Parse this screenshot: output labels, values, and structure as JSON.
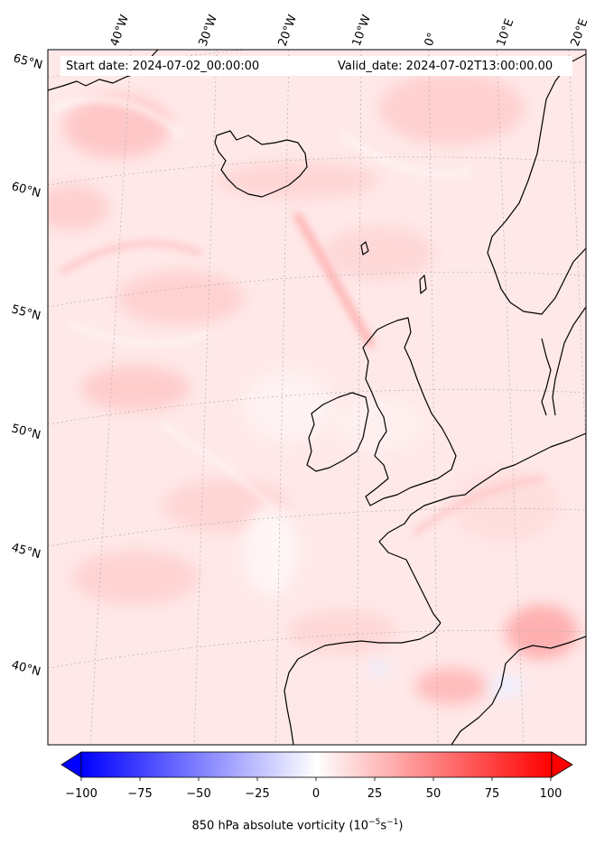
{
  "header": {
    "start_date": "Start date: 2024-07-02_00:00:00",
    "valid_date": "Valid_date: 2024-07-02T13:00:00.00"
  },
  "longitude_labels": [
    "40°W",
    "30°W",
    "20°W",
    "10°W",
    "0°",
    "10°E",
    "20°E"
  ],
  "latitude_labels": [
    "65°N",
    "60°N",
    "55°N",
    "50°N",
    "45°N",
    "40°N"
  ],
  "colorbar": {
    "ticks": [
      "−100",
      "−75",
      "−50",
      "−25",
      "0",
      "25",
      "50",
      "75",
      "100"
    ],
    "title_main": "850 hPa absolute vorticity (10",
    "title_exp1": "−5",
    "title_mid": "s",
    "title_exp2": "−1",
    "title_end": ")",
    "min": -100,
    "max": 100,
    "colors": {
      "negative": "#0000ff",
      "zero": "#ffffff",
      "positive": "#ff0000"
    }
  },
  "map": {
    "field_color": "#ffe6e6",
    "coastline_color": "#000000",
    "gridline_color": "#b0b0b0"
  }
}
